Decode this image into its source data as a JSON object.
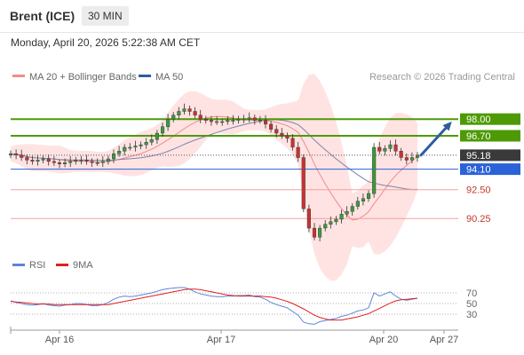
{
  "header": {
    "title": "Brent (ICE)",
    "timeframe": "30 MIN"
  },
  "datetime": "Monday, April 20, 2026 5:22:38 AM CET",
  "legend": [
    {
      "label": "MA 20 + Bollinger Bands",
      "color": "#f28b8b"
    },
    {
      "label": "MA 50",
      "color": "#2e5d9b"
    }
  ],
  "copyright": "Research © 2026 Trading Central",
  "rsi_legend": [
    {
      "label": "RSI",
      "color": "#5b86d8"
    },
    {
      "label": "9MA",
      "color": "#e02020"
    }
  ],
  "colors": {
    "up": "#3c9a3c",
    "down": "#c83232",
    "band": "#ffd9d9",
    "ma20": "#f08a8a",
    "ma50": "#7a85a8",
    "resistance": "#4e9a06",
    "pivot": "#2a62d8",
    "support": "#f4a0a0",
    "current": "#3a3a3a",
    "arrow": "#2e5d9b"
  },
  "chart_data": {
    "type": "candlestick",
    "x_ticks": [
      "Apr 16",
      "Apr 17",
      "Apr 20",
      "Apr 27"
    ],
    "ylim": [
      87.5,
      100.5
    ],
    "levels": [
      {
        "label": "98.00",
        "value": 98.0,
        "kind": "resistance"
      },
      {
        "label": "96.70",
        "value": 96.7,
        "kind": "resistance"
      },
      {
        "label": "95.18",
        "value": 95.18,
        "kind": "current"
      },
      {
        "label": "94.10",
        "value": 94.1,
        "kind": "pivot"
      },
      {
        "label": "92.50",
        "value": 92.5,
        "kind": "support"
      },
      {
        "label": "90.25",
        "value": 90.25,
        "kind": "support"
      }
    ],
    "close": [
      95.3,
      95.2,
      95.0,
      94.8,
      94.7,
      94.8,
      94.9,
      94.7,
      94.6,
      94.5,
      94.6,
      94.7,
      94.8,
      94.8,
      94.7,
      94.6,
      94.6,
      94.7,
      94.9,
      95.3,
      95.5,
      95.8,
      95.8,
      95.9,
      96.0,
      96.2,
      96.4,
      96.9,
      97.4,
      98.0,
      98.3,
      98.6,
      98.8,
      98.6,
      98.3,
      98.0,
      97.9,
      97.8,
      97.8,
      97.8,
      97.9,
      97.9,
      98.0,
      98.0,
      98.1,
      97.9,
      97.9,
      97.6,
      97.2,
      96.9,
      96.7,
      96.5,
      95.8,
      95.0,
      91.0,
      89.5,
      88.8,
      89.5,
      89.8,
      90.0,
      90.2,
      90.6,
      90.8,
      91.2,
      91.6,
      91.8,
      92.2,
      95.8,
      95.5,
      95.7,
      96.0,
      95.5,
      95.0,
      94.8,
      95.0,
      95.18
    ],
    "rsi_levels": [
      70,
      50,
      30
    ],
    "rsi": [
      55,
      52,
      50,
      48,
      47,
      48,
      50,
      47,
      46,
      45,
      47,
      48,
      50,
      50,
      48,
      46,
      46,
      48,
      52,
      58,
      62,
      64,
      63,
      64,
      66,
      68,
      70,
      73,
      76,
      78,
      79,
      80,
      80,
      77,
      72,
      68,
      66,
      64,
      63,
      63,
      64,
      64,
      65,
      65,
      66,
      63,
      62,
      58,
      52,
      48,
      45,
      42,
      35,
      28,
      15,
      12,
      11,
      16,
      18,
      20,
      22,
      26,
      28,
      32,
      36,
      38,
      42,
      70,
      64,
      68,
      72,
      64,
      58,
      56,
      58,
      60
    ],
    "rsi_ma": [
      54,
      53,
      52,
      51,
      50,
      49,
      49,
      49,
      48,
      48,
      48,
      48,
      48,
      48,
      48,
      48,
      48,
      48,
      48,
      50,
      52,
      54,
      56,
      58,
      60,
      62,
      64,
      66,
      68,
      70,
      72,
      74,
      76,
      77,
      77,
      76,
      74,
      72,
      70,
      68,
      66,
      65,
      64,
      64,
      64,
      64,
      64,
      63,
      62,
      60,
      57,
      54,
      50,
      45,
      40,
      34,
      28,
      24,
      21,
      19,
      19,
      19,
      21,
      23,
      25,
      28,
      31,
      36,
      41,
      46,
      51,
      55,
      57,
      58,
      59,
      60
    ]
  }
}
